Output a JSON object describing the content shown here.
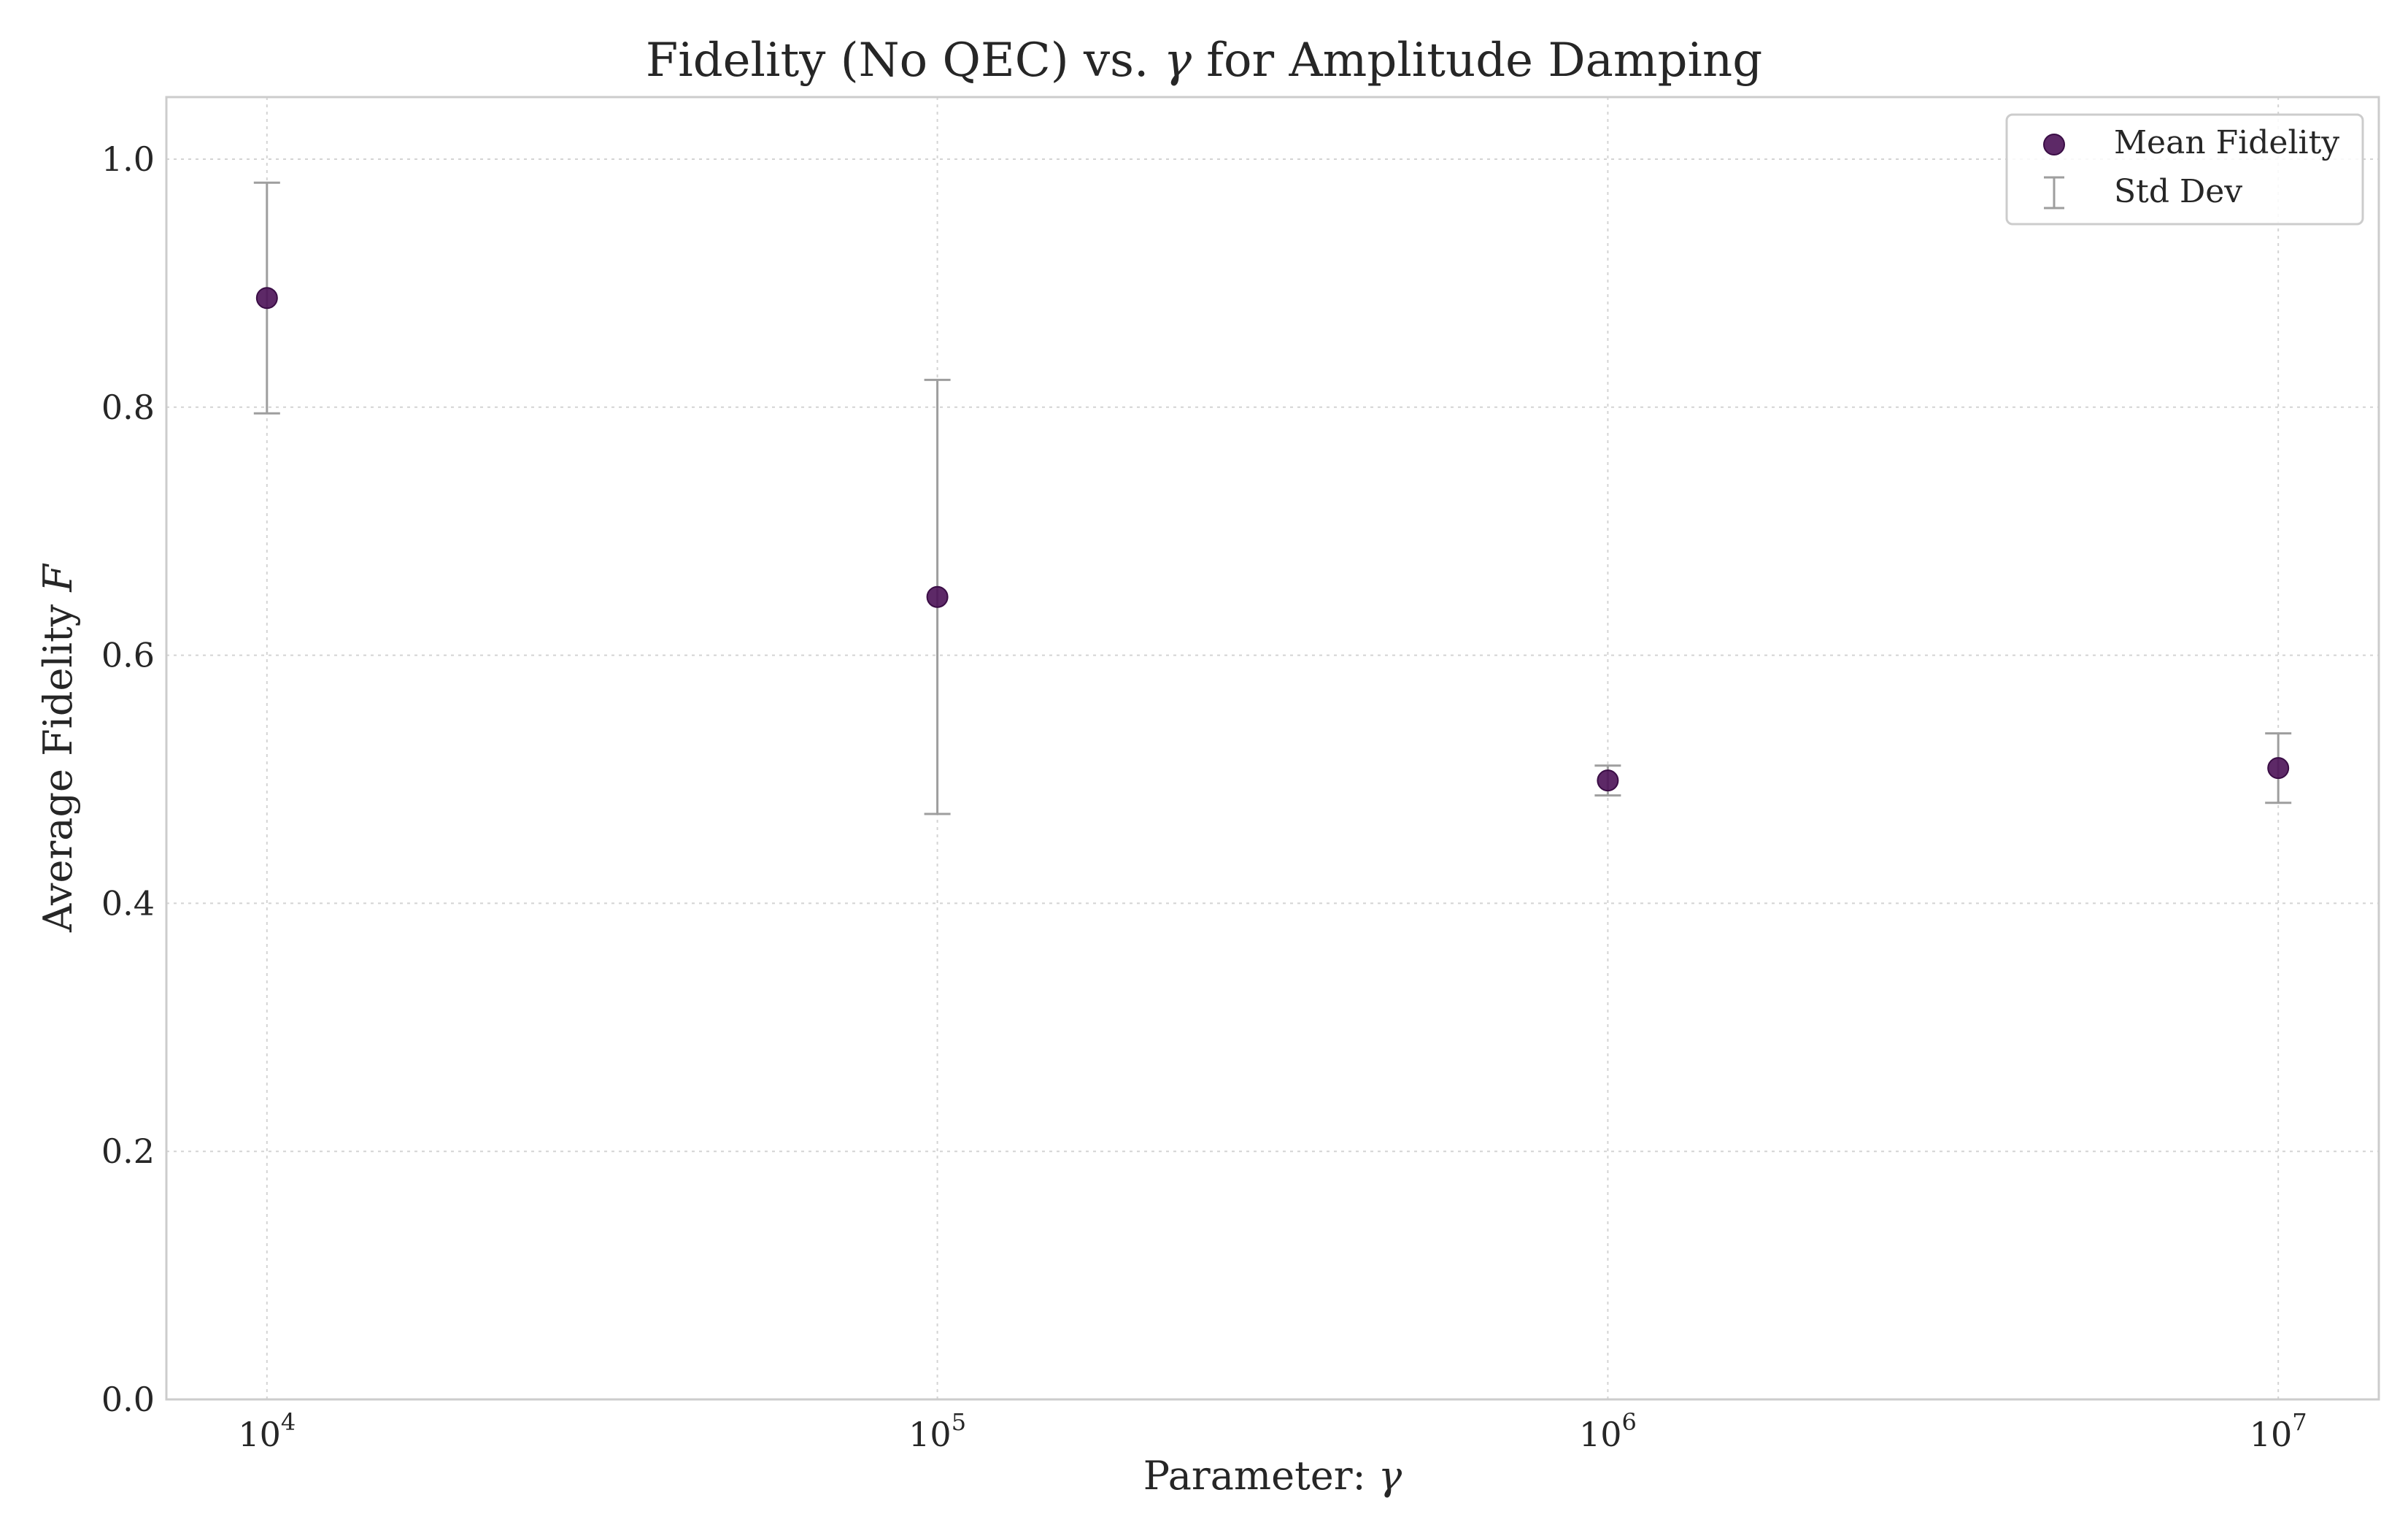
{
  "chart_data": {
    "type": "scatter",
    "title_text": "Fidelity (No QEC) vs. ",
    "title_symbol": "γ",
    "title_suffix": " for Amplitude Damping",
    "xlabel_text": "Parameter: ",
    "xlabel_symbol": "γ",
    "ylabel_text": "Average Fidelity ",
    "ylabel_symbol": "F",
    "x_scale": "log",
    "x_exponent_range": [
      3.85,
      7.15
    ],
    "ylim": [
      0.0,
      1.05
    ],
    "x_ticks": [
      {
        "base": "10",
        "exp": "4",
        "value": 10000
      },
      {
        "base": "10",
        "exp": "5",
        "value": 100000
      },
      {
        "base": "10",
        "exp": "6",
        "value": 1000000
      },
      {
        "base": "10",
        "exp": "7",
        "value": 10000000
      }
    ],
    "y_ticks": [
      {
        "label": "0.0",
        "value": 0.0
      },
      {
        "label": "0.2",
        "value": 0.2
      },
      {
        "label": "0.4",
        "value": 0.4
      },
      {
        "label": "0.6",
        "value": 0.6
      },
      {
        "label": "0.8",
        "value": 0.8
      },
      {
        "label": "1.0",
        "value": 1.0
      }
    ],
    "grid": true,
    "series": [
      {
        "name": "Mean Fidelity",
        "color": "#4b1257",
        "x": [
          10000,
          100000,
          1000000,
          10000000
        ],
        "y": [
          0.888,
          0.647,
          0.499,
          0.509
        ],
        "std": [
          0.093,
          0.175,
          0.012,
          0.028
        ]
      }
    ],
    "legend": {
      "position": "top-right",
      "entries": [
        {
          "label": "Mean Fidelity",
          "kind": "marker"
        },
        {
          "label": "Std Dev",
          "kind": "errorbar"
        }
      ]
    },
    "errorbar_color": "#9e9e9e"
  }
}
